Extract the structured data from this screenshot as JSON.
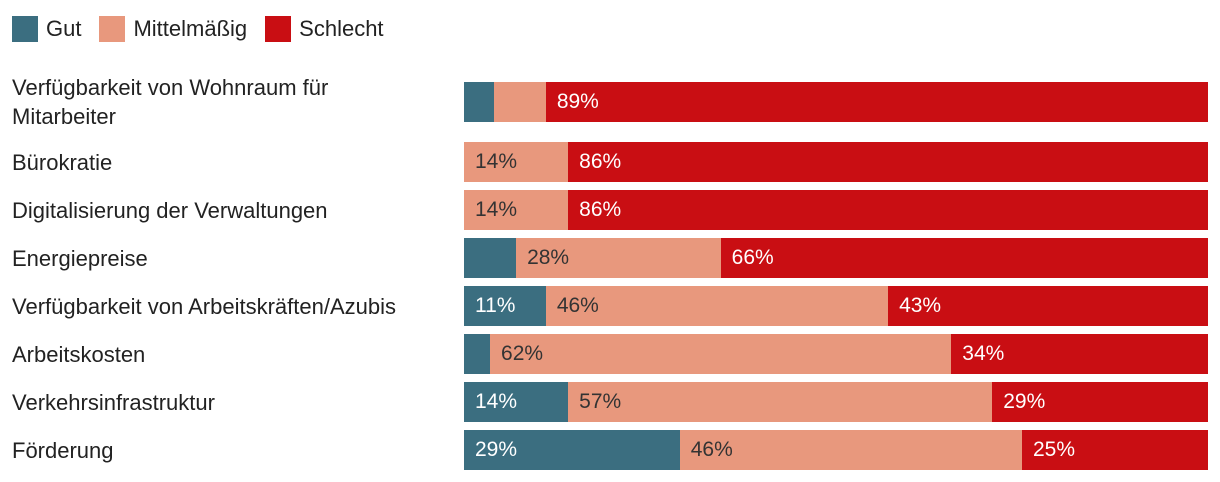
{
  "legend": [
    {
      "label": "Gut",
      "color": "#3b6e80"
    },
    {
      "label": "Mittelmäßig",
      "color": "#e8987d"
    },
    {
      "label": "Schlecht",
      "color": "#c90e13"
    }
  ],
  "chart_data": {
    "type": "bar",
    "orientation": "horizontal",
    "stacked": true,
    "xlim": [
      0,
      100
    ],
    "categories": [
      "Verfügbarkeit von Wohnraum für Mitarbeiter",
      "Bürokratie",
      "Digitalisierung der Verwaltungen",
      "Energiepreise",
      "Verfügbarkeit von Arbeitskräften/Azubis",
      "Arbeitskosten",
      "Verkehrsinfrastruktur",
      "Förderung"
    ],
    "series": [
      {
        "name": "Gut",
        "color": "#3b6e80",
        "text_color": "#ffffff",
        "values": [
          4,
          0,
          0,
          7,
          11,
          3.5,
          14,
          29
        ],
        "labels": [
          "",
          "",
          "",
          "",
          "11%",
          "",
          "14%",
          "29%"
        ]
      },
      {
        "name": "Mittelmäßig",
        "color": "#e8987d",
        "text_color": "#333333",
        "values": [
          7,
          14,
          14,
          27.5,
          46,
          62,
          57,
          46
        ],
        "labels": [
          "",
          "14%",
          "14%",
          "28%",
          "46%",
          "62%",
          "57%",
          "46%"
        ]
      },
      {
        "name": "Schlecht",
        "color": "#c90e13",
        "text_color": "#ffffff",
        "values": [
          89,
          86,
          86,
          65.5,
          43,
          34.5,
          29,
          25
        ],
        "labels": [
          "89%",
          "86%",
          "86%",
          "66%",
          "43%",
          "34%",
          "29%",
          "25%"
        ]
      }
    ],
    "legend_position": "top-left",
    "grid": false
  }
}
